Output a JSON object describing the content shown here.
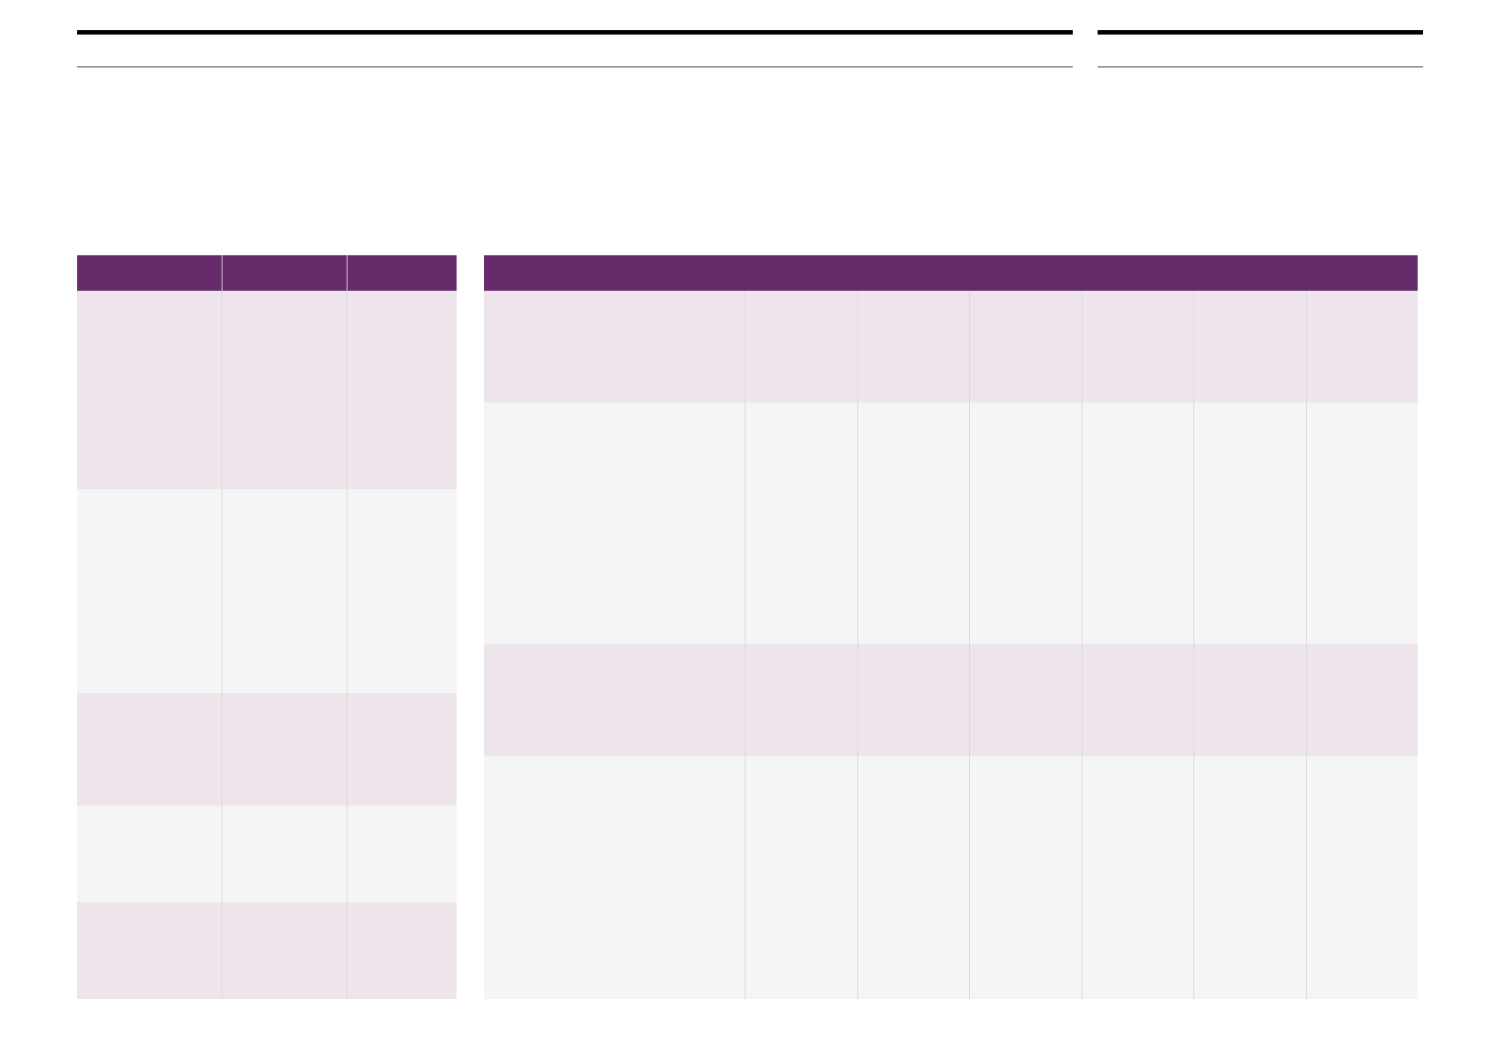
{
  "colors": {
    "header": "#652b6b",
    "band_purple": "#eee4eb",
    "band_grey": "#f5f5f5",
    "rule": "#000000"
  },
  "left_table": {
    "headers": [
      "",
      "",
      ""
    ],
    "rows": [
      [
        "",
        "",
        ""
      ],
      [
        "",
        "",
        ""
      ],
      [
        "",
        "",
        ""
      ],
      [
        "",
        "",
        ""
      ],
      [
        "",
        "",
        ""
      ]
    ]
  },
  "right_table": {
    "header": "",
    "rows": [
      [
        "",
        "",
        "",
        "",
        "",
        "",
        ""
      ],
      [
        "",
        "",
        "",
        "",
        "",
        "",
        ""
      ],
      [
        "",
        "",
        "",
        "",
        "",
        "",
        ""
      ],
      [
        "",
        "",
        "",
        "",
        "",
        "",
        ""
      ]
    ]
  }
}
